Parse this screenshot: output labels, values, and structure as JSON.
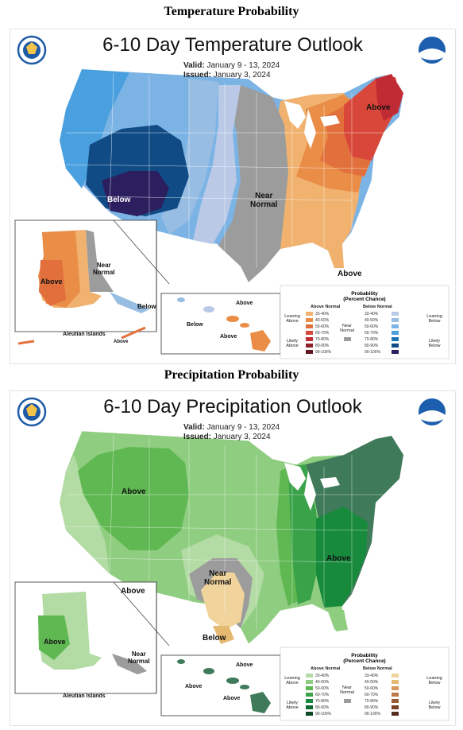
{
  "sections": {
    "temp_title": "Temperature Probability",
    "precip_title": "Precipitation Probability"
  },
  "temp": {
    "title": "6-10 Day Temperature Outlook",
    "valid_label": "Valid:",
    "valid_value": "January 9 - 13, 2024",
    "issued_label": "Issued:",
    "issued_value": "January 3, 2024",
    "labels": {
      "below_main": "Below",
      "near_normal_1": "Near",
      "near_normal_2": "Normal",
      "above_ne": "Above",
      "above_fl": "Above",
      "ak_above": "Above",
      "ak_near_1": "Near",
      "ak_near_2": "Normal",
      "ak_below": "Below",
      "aleutian": "Aleutian Islands",
      "aleutian_above": "Above",
      "hi_above_1": "Above",
      "hi_below": "Below",
      "hi_above_2": "Above"
    },
    "legend": {
      "title_1": "Probability",
      "title_2": "(Percent Chance)",
      "above_normal": "Above Normal",
      "below_normal": "Below Normal",
      "near_normal_1": "Near",
      "near_normal_2": "Normal",
      "leaning_above_1": "Leaning",
      "leaning_above_2": "Above",
      "likely_above_1": "Likely",
      "likely_above_2": "Above",
      "leaning_below_1": "Leaning",
      "leaning_below_2": "Below",
      "likely_below_1": "Likely",
      "likely_below_2": "Below",
      "ranges": [
        "33-40%",
        "40-50%",
        "50-60%",
        "60-70%",
        "70-80%",
        "80-90%",
        "90-100%"
      ],
      "above_colors": [
        "#f0b26e",
        "#e98d47",
        "#e2703c",
        "#d9473a",
        "#c12b33",
        "#91202b",
        "#5f1a20"
      ],
      "below_colors": [
        "#b9c9e6",
        "#98bde3",
        "#7cb3e5",
        "#4aa0df",
        "#1b73b9",
        "#104b86",
        "#2b1f5f"
      ],
      "near_color": "#9c9c9c"
    }
  },
  "precip": {
    "title": "6-10 Day Precipitation Outlook",
    "valid_label": "Valid:",
    "valid_value": "January 9 - 13, 2024",
    "issued_label": "Issued:",
    "issued_value": "January 3, 2024",
    "labels": {
      "above_nw": "Above",
      "near_normal_1": "Near",
      "near_normal_2": "Normal",
      "above_se": "Above",
      "above_sw": "Above",
      "below_tx": "Below",
      "ak_above": "Above",
      "ak_near_1": "Near",
      "ak_near_2": "Normal",
      "aleutian": "Aleutian Islands",
      "hi_above_1": "Above",
      "hi_above_2": "Above",
      "hi_above_3": "Above"
    },
    "legend": {
      "title_1": "Probability",
      "title_2": "(Percent Chance)",
      "above_normal": "Above Normal",
      "below_normal": "Below Normal",
      "near_normal_1": "Near",
      "near_normal_2": "Normal",
      "leaning_above_1": "Leaning",
      "leaning_above_2": "Above",
      "likely_above_1": "Likely",
      "likely_above_2": "Above",
      "leaning_below_1": "Leaning",
      "leaning_below_2": "Below",
      "likely_below_1": "Likely",
      "likely_below_2": "Below",
      "ranges": [
        "33-40%",
        "40-50%",
        "50-60%",
        "60-70%",
        "70-80%",
        "80-90%",
        "90-100%"
      ],
      "above_colors": [
        "#b3dba4",
        "#8fcd80",
        "#5fb851",
        "#3aa34a",
        "#188a3c",
        "#0d6a31",
        "#0a4a24"
      ],
      "below_colors": [
        "#f0d49c",
        "#e6b972",
        "#d79a58",
        "#c07a45",
        "#9a5a34",
        "#784026",
        "#552b1b"
      ],
      "near_color": "#9c9c9c"
    }
  },
  "colors": {
    "below_33": "#b9c9e6",
    "below_40": "#98bde3",
    "below_50": "#7cb3e5",
    "below_60": "#4aa0df",
    "below_70": "#1b73b9",
    "below_80": "#104b86",
    "below_90": "#2b1f5f",
    "above_33": "#f0b26e",
    "above_40": "#e98d47",
    "above_50": "#e2703c",
    "above_60": "#d9473a",
    "above_70": "#c12b33",
    "near": "#9c9c9c",
    "wet_33": "#b3dba4",
    "wet_40": "#8fcd80",
    "wet_50": "#5fb851",
    "wet_60": "#3aa34a",
    "wet_70": "#188a3c",
    "wet_dark": "#3f7a5a",
    "dry_33": "#f0d49c",
    "dry_40": "#e6b972",
    "noaa_blue": "#1d5fae",
    "doc_blue": "#1e5aa6"
  }
}
